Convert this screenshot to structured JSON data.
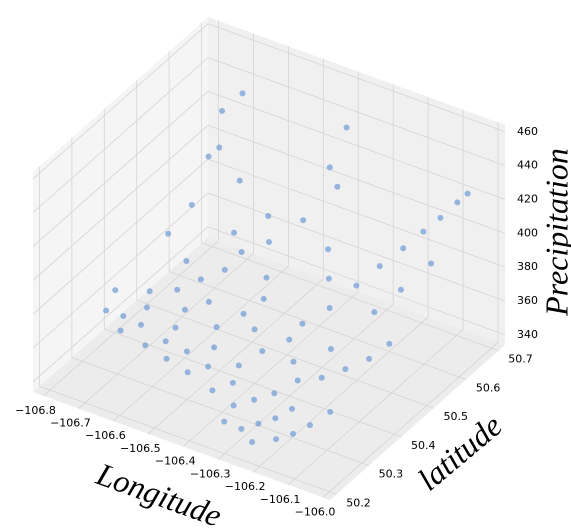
{
  "chart_data": {
    "type": "scatter3d",
    "x_label": "Longitude",
    "y_label": "latitude",
    "z_label": "Precipitation",
    "x": [
      -106.76,
      -106.72,
      -106.7,
      -106.66,
      -106.62,
      -106.58,
      -106.55,
      -106.51,
      -106.48,
      -106.44,
      -106.4,
      -106.36,
      -106.33,
      -106.29,
      -106.25,
      -106.22,
      -106.19,
      -106.16,
      -106.13,
      -106.1,
      -106.7,
      -106.64,
      -106.59,
      -106.54,
      -106.49,
      -106.45,
      -106.4,
      -106.35,
      -106.31,
      -106.27,
      -106.23,
      -106.18,
      -106.14,
      -106.1,
      -106.07,
      -106.74,
      -106.7,
      -106.68,
      -106.66,
      -106.64,
      -106.62,
      -106.6,
      -106.57,
      -106.53,
      -106.5,
      -106.47,
      -106.44,
      -106.4,
      -106.37,
      -106.35,
      -106.33,
      -106.31,
      -106.28,
      -106.25,
      -106.22,
      -106.19,
      -106.16,
      -106.13,
      -106.1,
      -106.07,
      -106.05,
      -106.08,
      -106.12,
      -106.15,
      -106.6,
      -106.55,
      -106.66,
      -106.42,
      -106.3,
      -106.2,
      -106.58,
      -106.46,
      -106.38,
      -106.26,
      -106.2,
      -106.24,
      -106.28,
      -106.32,
      -106.78,
      -106.68
    ],
    "y": [
      50.33,
      50.34,
      50.31,
      50.33,
      50.3,
      50.32,
      50.29,
      50.31,
      50.28,
      50.3,
      50.27,
      50.29,
      50.26,
      50.28,
      50.25,
      50.27,
      50.24,
      50.26,
      50.28,
      50.31,
      50.4,
      50.42,
      50.39,
      50.41,
      50.38,
      50.42,
      50.4,
      50.37,
      50.41,
      50.38,
      50.35,
      50.37,
      50.4,
      50.43,
      50.46,
      50.5,
      50.53,
      50.56,
      50.58,
      50.55,
      50.6,
      50.57,
      50.52,
      50.5,
      50.55,
      50.52,
      50.48,
      50.55,
      50.6,
      50.63,
      50.58,
      50.53,
      50.5,
      50.47,
      50.52,
      50.56,
      50.6,
      50.63,
      50.65,
      50.67,
      50.68,
      50.6,
      50.55,
      50.5,
      50.45,
      50.47,
      50.47,
      50.45,
      50.44,
      50.42,
      50.35,
      50.34,
      50.33,
      50.31,
      50.3,
      50.22,
      50.23,
      50.22,
      50.38,
      50.37
    ],
    "z": [
      362,
      360,
      358,
      361,
      357,
      359,
      356,
      360,
      355,
      358,
      352,
      356,
      350,
      353,
      347,
      349,
      344,
      346,
      350,
      355,
      366,
      368,
      365,
      370,
      364,
      368,
      366,
      362,
      365,
      360,
      357,
      359,
      362,
      366,
      372,
      380,
      395,
      420,
      445,
      430,
      455,
      410,
      390,
      385,
      400,
      392,
      380,
      405,
      430,
      450,
      425,
      398,
      388,
      378,
      385,
      392,
      398,
      405,
      412,
      420,
      425,
      395,
      385,
      378,
      372,
      378,
      375,
      374,
      370,
      366,
      362,
      361,
      358,
      354,
      351,
      342,
      345,
      348,
      364,
      363
    ],
    "color": "#6c9bd5",
    "xlim": [
      -106.83,
      -105.98
    ],
    "ylim": [
      50.18,
      50.72
    ],
    "zlim": [
      334,
      464
    ],
    "xticks": [
      {
        "value": -106.8,
        "label": "−106.8"
      },
      {
        "value": -106.7,
        "label": "−106.7"
      },
      {
        "value": -106.6,
        "label": "−106.6"
      },
      {
        "value": -106.5,
        "label": "−106.5"
      },
      {
        "value": -106.4,
        "label": "−106.4"
      },
      {
        "value": -106.3,
        "label": "−106.3"
      },
      {
        "value": -106.2,
        "label": "−106.2"
      },
      {
        "value": -106.1,
        "label": "−106.1"
      },
      {
        "value": -106.0,
        "label": "−106.0"
      }
    ],
    "yticks": [
      50.2,
      50.3,
      50.4,
      50.5,
      50.6,
      50.7
    ],
    "zticks": [
      340,
      360,
      380,
      400,
      420,
      440,
      460
    ],
    "grid": true
  }
}
